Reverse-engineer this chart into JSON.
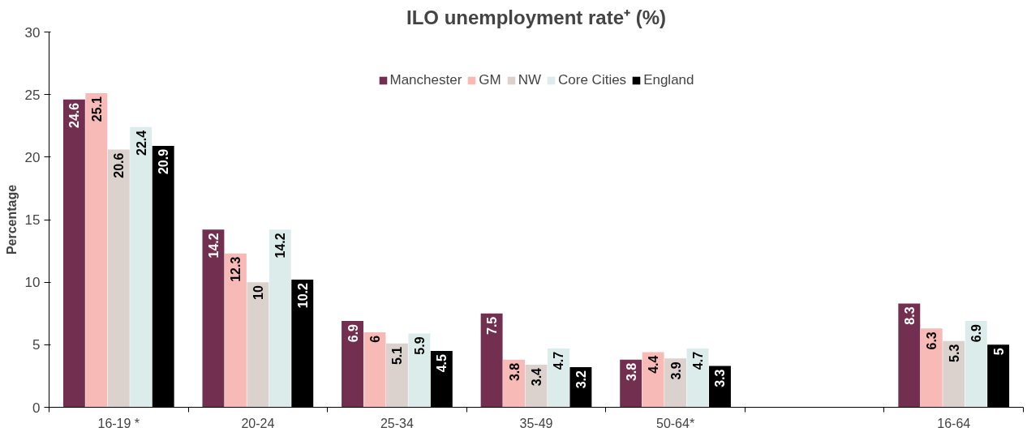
{
  "chart_data": {
    "type": "bar",
    "title": "ILO unemployment rate⁺ (%)",
    "ylabel": "Percentage",
    "categories": [
      "16-19 *",
      "20-24",
      "25-34",
      "35-49",
      "50-64*",
      null,
      "16-64"
    ],
    "series": [
      {
        "name": "Manchester",
        "color": "#722f4f",
        "values": [
          24.6,
          14.2,
          6.9,
          7.5,
          3.8,
          null,
          8.3
        ]
      },
      {
        "name": "GM",
        "color": "#f8bab6",
        "values": [
          25.1,
          12.3,
          6,
          3.8,
          4.4,
          null,
          6.3
        ]
      },
      {
        "name": "NW",
        "color": "#dbd2cd",
        "values": [
          20.6,
          10,
          5.1,
          3.4,
          3.9,
          null,
          5.3
        ]
      },
      {
        "name": "Core Cities",
        "color": "#dbecea",
        "values": [
          22.4,
          14.2,
          5.9,
          4.7,
          4.7,
          null,
          6.9
        ]
      },
      {
        "name": "England",
        "color": "#000000",
        "values": [
          20.9,
          10.2,
          4.5,
          3.2,
          3.3,
          null,
          5
        ]
      }
    ],
    "ylim": [
      0,
      30
    ],
    "yticks": [
      0,
      5,
      10,
      15,
      20,
      25,
      30
    ],
    "grid": false,
    "legend": "top",
    "data_labels": true
  }
}
